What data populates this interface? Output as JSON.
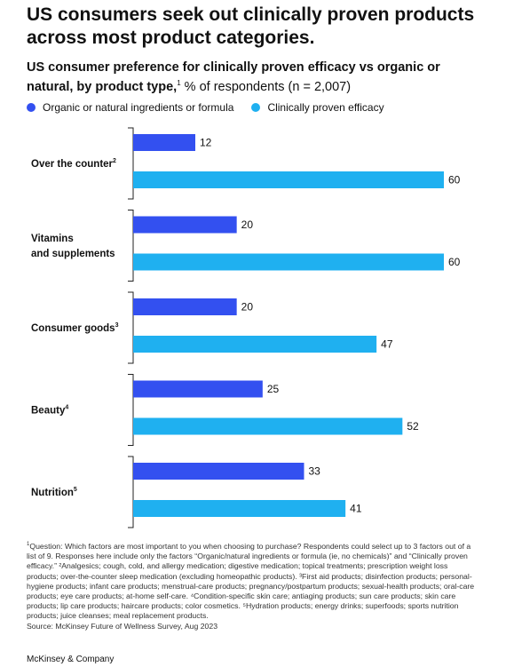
{
  "title": "US consumers seek out clinically proven products across most product categories.",
  "subtitle": {
    "bold": "US consumer preference for clinically proven efficacy vs organic or natural, by product type,",
    "sup": "1",
    "rest": " % of respondents (n = 2,007)"
  },
  "colors": {
    "organic": "#3350f0",
    "clinical": "#1fb0f0",
    "axis": "#222222"
  },
  "chart_data": {
    "type": "bar",
    "orientation": "horizontal",
    "categories": [
      {
        "label": "Over the counter",
        "sup": "2"
      },
      {
        "label": "Vitamins\nand supplements",
        "sup": ""
      },
      {
        "label": "Consumer goods",
        "sup": "3"
      },
      {
        "label": "Beauty",
        "sup": "4"
      },
      {
        "label": "Nutrition",
        "sup": "5"
      }
    ],
    "series": [
      {
        "name": "Organic or natural ingredients or formula",
        "values": [
          12,
          20,
          20,
          25,
          33
        ]
      },
      {
        "name": "Clinically proven efficacy",
        "values": [
          60,
          60,
          47,
          52,
          41
        ]
      }
    ],
    "xlim": [
      0,
      60
    ],
    "data_labels": true,
    "grid": false,
    "legend_position": "top-left"
  },
  "footnotes": "Question: Which factors are most important to you when choosing to purchase? Respondents could select up to 3 factors out of a list of 9. Responses here include only the factors “Organic/natural ingredients or formula (ie, no chemicals)” and “Clinically proven efficacy.” ²Analgesics; cough, cold, and allergy medication; digestive medication; topical treatments; prescription weight loss products; over-the-counter sleep medication (excluding homeopathic products). ³First aid products; disinfection products; personal-hygiene products; infant care products; menstrual-care products; pregnancy/postpartum products; sexual-health products; oral-care products; eye care products; at-home self-care. ⁴Condition-specific skin care; antiaging products; sun care products; skin care products; lip care products; haircare products; color cosmetics. ⁵Hydration products; energy drinks; superfoods; sports nutrition products; juice cleanses; meal replacement products.",
  "footnote_sup": "1",
  "source": "Source: McKinsey Future of Wellness Survey, Aug 2023",
  "brand": "McKinsey & Company"
}
